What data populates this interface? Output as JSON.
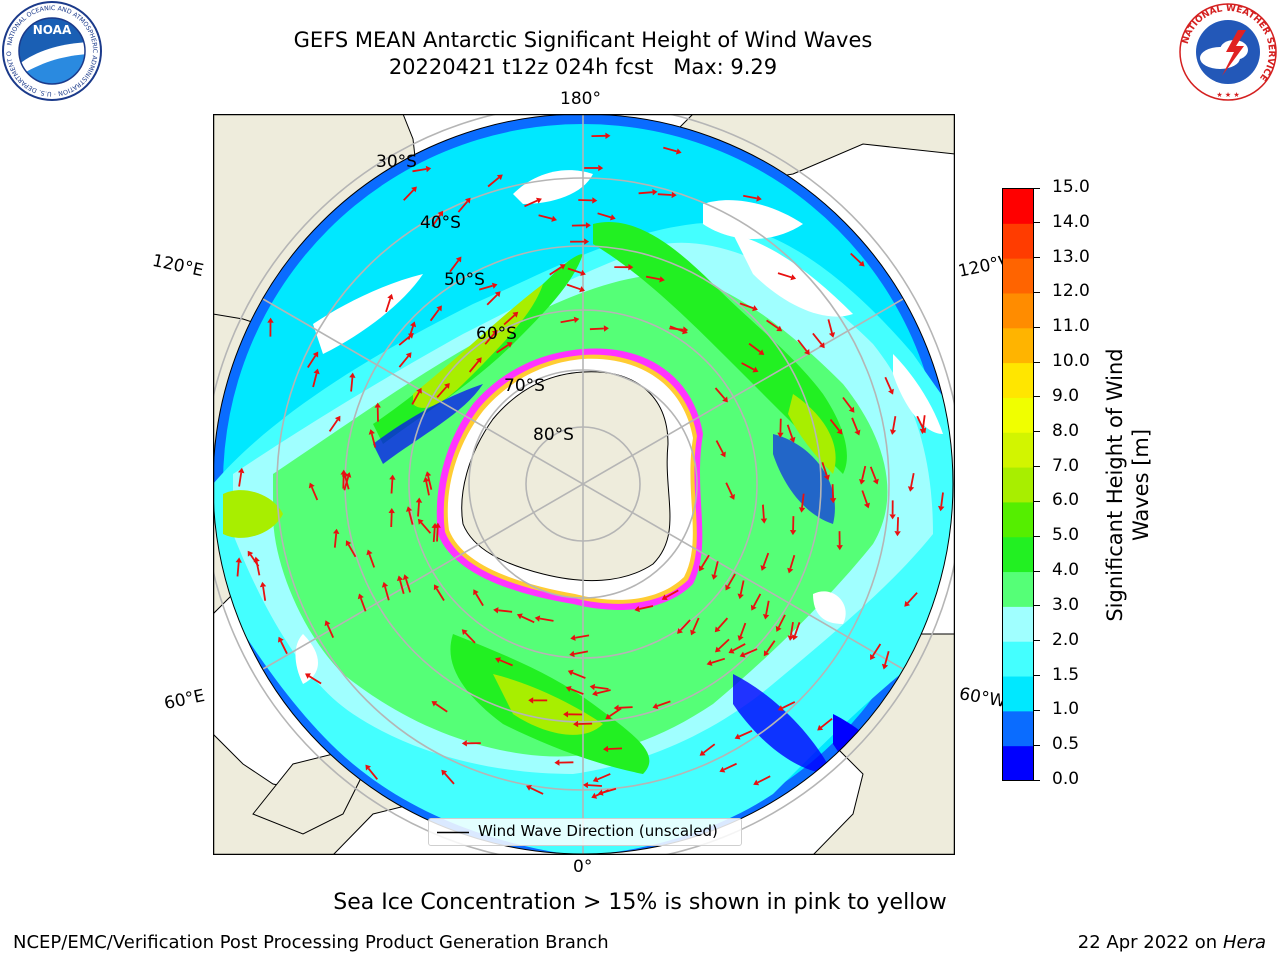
{
  "header": {
    "title_line1": "GEFS MEAN Antarctic Significant Height of Wind Waves",
    "title_line2": "20220421 t12z 024h fcst   Max: 9.29"
  },
  "logos": {
    "noaa_text": "NOAA",
    "noaa_ring": "NATIONAL OCEANIC AND ATMOSPHERIC ADMINISTRATION · U.S. DEPARTMENT OF COMMERCE",
    "nws_ring": "NATIONAL WEATHER SERVICE"
  },
  "map": {
    "longitude_labels": {
      "top": "180°",
      "upper_left": "120°E",
      "upper_right": "120°W",
      "lower_left": "60°E",
      "lower_right": "60°W",
      "bottom": "0°"
    },
    "latitude_labels": [
      "30°S",
      "40°S",
      "50°S",
      "60°S",
      "70°S",
      "80°S"
    ],
    "legend_label": "Wind Wave Direction (unscaled)",
    "colors": {
      "land": "#eeecdc",
      "ice_edge_outer": "#ff33ff",
      "ice_edge_inner": "#ffcc33",
      "arrow": "#e81010",
      "graticule": "#b5b5b5"
    }
  },
  "colorbar": {
    "title": "Significant Height of Wind Waves [m]",
    "title_line1": "Significant Height of Wind",
    "title_line2": "Waves [m]",
    "ticks": [
      "0.0",
      "0.5",
      "1.0",
      "1.5",
      "2.0",
      "3.0",
      "4.0",
      "5.0",
      "6.0",
      "7.0",
      "8.0",
      "9.0",
      "10.0",
      "11.0",
      "12.0",
      "13.0",
      "14.0",
      "15.0"
    ],
    "colors": [
      "#0000ff",
      "#0a6cff",
      "#00e8ff",
      "#44ffff",
      "#a0ffff",
      "#55ff77",
      "#22f022",
      "#55ee00",
      "#a8ee00",
      "#d2f500",
      "#f0ff00",
      "#ffe600",
      "#ffb400",
      "#ff8c00",
      "#ff6400",
      "#ff3c00",
      "#ff0000"
    ]
  },
  "footer": {
    "note": "Sea Ice Concentration > 15% is shown in pink to yellow",
    "left": "NCEP/EMC/Verification Post Processing Product Generation Branch",
    "right_date": "22 Apr 2022 on ",
    "right_host": "Hera"
  }
}
